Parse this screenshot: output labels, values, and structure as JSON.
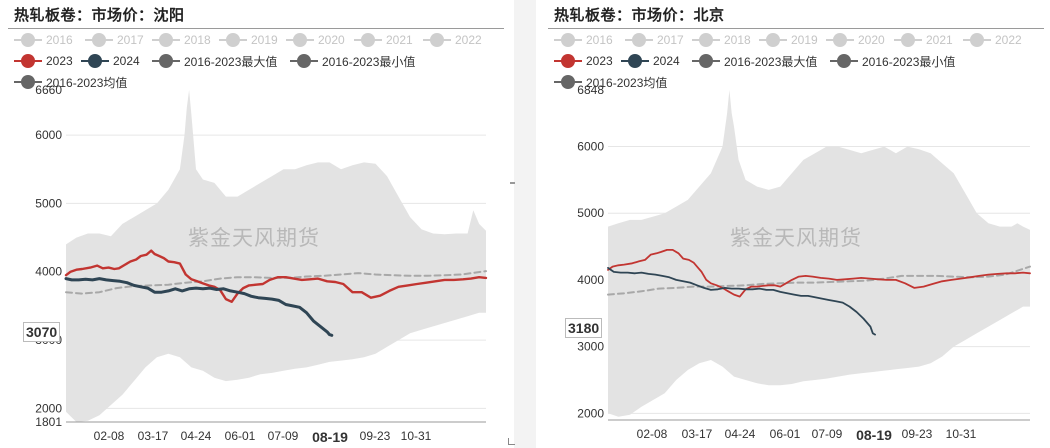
{
  "chart_data": [
    {
      "type": "line",
      "title": "热轧板卷：市场价：沈阳",
      "watermark": "紫金天风期货",
      "legend": [
        "2016",
        "2017",
        "2018",
        "2019",
        "2020",
        "2021",
        "2022",
        "2023",
        "2024",
        "2016-2023最大值",
        "2016-2023最小值",
        "2016-2023均值"
      ],
      "legend_hidden": [
        "2016",
        "2017",
        "2018",
        "2019",
        "2020",
        "2021",
        "2022"
      ],
      "ylim": [
        1801,
        6660
      ],
      "yticks": [
        2000,
        3000,
        4000,
        5000,
        6000
      ],
      "ylim_labels": [
        "1801",
        "6660"
      ],
      "xticks": [
        "02-08",
        "03-17",
        "04-24",
        "06-01",
        "07-09",
        "08-19",
        "09-23",
        "10-31"
      ],
      "highlight_tick": "08-19",
      "last_value": "3070",
      "series": [
        {
          "name": "2023",
          "color": "#c23531",
          "x": [
            1,
            5,
            10,
            15,
            22,
            28,
            33,
            38,
            43,
            47,
            52,
            57,
            62,
            66,
            71,
            75,
            78,
            82,
            86,
            90,
            95,
            100,
            105,
            110,
            115,
            120,
            125,
            130,
            135,
            140,
            145,
            150,
            155,
            160,
            166,
            172,
            178,
            185,
            192,
            199,
            206,
            213,
            220,
            228,
            235,
            242,
            250,
            258,
            266,
            274,
            282,
            290,
            298,
            306,
            314,
            322,
            330,
            338,
            346,
            353,
            360,
            366
          ],
          "y": [
            3950,
            4000,
            4030,
            4040,
            4060,
            4090,
            4050,
            4060,
            4040,
            4050,
            4100,
            4150,
            4180,
            4230,
            4250,
            4310,
            4260,
            4230,
            4200,
            4150,
            4140,
            4120,
            3960,
            3890,
            3860,
            3830,
            3800,
            3780,
            3730,
            3600,
            3560,
            3680,
            3760,
            3800,
            3810,
            3820,
            3880,
            3920,
            3920,
            3900,
            3880,
            3890,
            3900,
            3860,
            3850,
            3820,
            3700,
            3700,
            3620,
            3650,
            3720,
            3780,
            3800,
            3820,
            3840,
            3860,
            3880,
            3880,
            3890,
            3900,
            3920,
            3910
          ]
        },
        {
          "name": "2024",
          "color": "#2f4554",
          "x": [
            1,
            6,
            12,
            18,
            24,
            30,
            36,
            42,
            48,
            54,
            60,
            66,
            72,
            78,
            84,
            90,
            96,
            102,
            108,
            114,
            120,
            126,
            132,
            138,
            144,
            150,
            156,
            162,
            168,
            174,
            180,
            186,
            192,
            198,
            204,
            210,
            216,
            222,
            228,
            230,
            232
          ],
          "y": [
            3900,
            3880,
            3880,
            3890,
            3880,
            3900,
            3880,
            3870,
            3860,
            3840,
            3800,
            3780,
            3760,
            3700,
            3700,
            3720,
            3750,
            3720,
            3750,
            3760,
            3750,
            3760,
            3740,
            3750,
            3720,
            3700,
            3680,
            3640,
            3620,
            3610,
            3600,
            3580,
            3520,
            3500,
            3480,
            3400,
            3280,
            3200,
            3120,
            3080,
            3070
          ]
        },
        {
          "name": "2016-2023均值",
          "color": "#a8a8a8",
          "x": [
            1,
            15,
            30,
            45,
            60,
            75,
            90,
            105,
            120,
            135,
            150,
            165,
            180,
            195,
            210,
            225,
            240,
            255,
            270,
            285,
            300,
            315,
            330,
            345,
            366
          ],
          "y": [
            3700,
            3680,
            3700,
            3760,
            3790,
            3800,
            3810,
            3840,
            3860,
            3900,
            3920,
            3920,
            3910,
            3910,
            3930,
            3940,
            3960,
            3980,
            3960,
            3950,
            3940,
            3940,
            3950,
            3960,
            4010
          ]
        },
        {
          "name": "2016-2023最大值",
          "x": [
            1,
            10,
            20,
            30,
            40,
            50,
            60,
            70,
            80,
            90,
            100,
            104,
            106,
            108,
            110,
            114,
            120,
            130,
            140,
            150,
            160,
            170,
            180,
            190,
            200,
            210,
            220,
            230,
            240,
            250,
            260,
            270,
            280,
            290,
            300,
            310,
            320,
            330,
            340,
            350,
            355,
            360,
            366
          ],
          "y": [
            4400,
            4500,
            4560,
            4560,
            4520,
            4700,
            4800,
            4900,
            5000,
            5200,
            5500,
            6000,
            6400,
            6660,
            6300,
            5500,
            5350,
            5300,
            5100,
            5100,
            5200,
            5300,
            5400,
            5500,
            5500,
            5560,
            5600,
            5600,
            5500,
            5560,
            5600,
            5580,
            5400,
            5100,
            4800,
            4620,
            4560,
            4550,
            4560,
            4560,
            4900,
            4700,
            4600
          ]
        },
        {
          "name": "2016-2023最小值",
          "x": [
            1,
            10,
            20,
            30,
            40,
            50,
            60,
            70,
            80,
            90,
            100,
            110,
            120,
            130,
            140,
            150,
            160,
            170,
            180,
            190,
            200,
            210,
            220,
            230,
            240,
            250,
            260,
            270,
            280,
            290,
            300,
            310,
            320,
            330,
            340,
            350,
            360,
            366
          ],
          "y": [
            1950,
            1801,
            1820,
            1900,
            2050,
            2200,
            2400,
            2600,
            2750,
            2800,
            2750,
            2600,
            2550,
            2450,
            2400,
            2420,
            2450,
            2500,
            2520,
            2550,
            2580,
            2600,
            2640,
            2680,
            2700,
            2720,
            2750,
            2800,
            2900,
            3000,
            3100,
            3150,
            3200,
            3250,
            3300,
            3350,
            3400,
            3400
          ]
        }
      ]
    },
    {
      "type": "line",
      "title": "热轧板卷：市场价：北京",
      "watermark": "紫金天风期货",
      "legend": [
        "2016",
        "2017",
        "2018",
        "2019",
        "2020",
        "2021",
        "2022",
        "2023",
        "2024",
        "2016-2023最大值",
        "2016-2023最小值",
        "2016-2023均值"
      ],
      "legend_hidden": [
        "2016",
        "2017",
        "2018",
        "2019",
        "2020",
        "2021",
        "2022"
      ],
      "ylim": [
        1900,
        6848
      ],
      "yticks": [
        2000,
        3000,
        4000,
        5000,
        6000
      ],
      "ylim_labels": [
        "",
        "6848"
      ],
      "xticks": [
        "02-08",
        "03-17",
        "04-24",
        "06-01",
        "07-09",
        "08-19",
        "09-23",
        "10-31"
      ],
      "highlight_tick": "08-19",
      "last_value": "3180",
      "series": [
        {
          "name": "2023",
          "color": "#c23531",
          "x": [
            1,
            5,
            10,
            15,
            22,
            28,
            33,
            38,
            43,
            47,
            52,
            57,
            62,
            66,
            71,
            75,
            78,
            82,
            86,
            90,
            95,
            100,
            105,
            110,
            115,
            120,
            125,
            130,
            135,
            140,
            145,
            150,
            155,
            160,
            166,
            172,
            178,
            185,
            192,
            199,
            206,
            213,
            220,
            228,
            235,
            242,
            250,
            258,
            266,
            274,
            282,
            290,
            298,
            306,
            314,
            322,
            330,
            338,
            346,
            353,
            360,
            366
          ],
          "y": [
            4150,
            4200,
            4220,
            4230,
            4250,
            4280,
            4300,
            4380,
            4400,
            4420,
            4450,
            4450,
            4400,
            4320,
            4300,
            4260,
            4200,
            4120,
            4000,
            3950,
            3920,
            3880,
            3830,
            3780,
            3750,
            3860,
            3900,
            3900,
            3910,
            3920,
            3920,
            3900,
            3950,
            4000,
            4050,
            4060,
            4050,
            4030,
            4020,
            4000,
            4010,
            4020,
            4030,
            4020,
            4010,
            4000,
            4000,
            3950,
            3880,
            3900,
            3940,
            3980,
            4000,
            4020,
            4040,
            4060,
            4080,
            4090,
            4100,
            4100,
            4110,
            4100
          ]
        },
        {
          "name": "2024",
          "color": "#2f4554",
          "x": [
            1,
            6,
            12,
            18,
            24,
            30,
            36,
            42,
            48,
            54,
            60,
            66,
            72,
            78,
            84,
            90,
            96,
            102,
            108,
            114,
            120,
            126,
            132,
            138,
            144,
            150,
            156,
            162,
            168,
            174,
            180,
            186,
            192,
            198,
            204,
            210,
            216,
            222,
            228,
            230,
            232
          ],
          "y": [
            4180,
            4120,
            4110,
            4110,
            4100,
            4110,
            4090,
            4080,
            4060,
            4040,
            4000,
            3980,
            3960,
            3920,
            3880,
            3850,
            3860,
            3880,
            3870,
            3870,
            3860,
            3860,
            3870,
            3850,
            3850,
            3820,
            3800,
            3780,
            3760,
            3760,
            3740,
            3720,
            3700,
            3680,
            3660,
            3600,
            3520,
            3420,
            3300,
            3200,
            3180
          ]
        },
        {
          "name": "2016-2023均值",
          "color": "#a8a8a8",
          "x": [
            1,
            15,
            30,
            45,
            60,
            75,
            90,
            105,
            120,
            135,
            150,
            165,
            180,
            195,
            210,
            225,
            240,
            255,
            270,
            285,
            300,
            315,
            330,
            345,
            366
          ],
          "y": [
            3780,
            3800,
            3830,
            3870,
            3880,
            3900,
            3900,
            3910,
            3920,
            3940,
            3950,
            3960,
            3960,
            3970,
            3980,
            3990,
            4020,
            4060,
            4060,
            4060,
            4050,
            4040,
            4050,
            4080,
            4200
          ]
        },
        {
          "name": "2016-2023最大值",
          "x": [
            1,
            10,
            20,
            30,
            40,
            50,
            60,
            70,
            80,
            90,
            100,
            104,
            106,
            108,
            110,
            114,
            120,
            130,
            140,
            150,
            160,
            170,
            180,
            190,
            200,
            210,
            220,
            230,
            240,
            250,
            260,
            270,
            280,
            290,
            300,
            310,
            320,
            330,
            340,
            350,
            355,
            360,
            366
          ],
          "y": [
            4800,
            4850,
            4900,
            4900,
            4950,
            5000,
            5100,
            5200,
            5400,
            5600,
            6000,
            6500,
            6848,
            6500,
            6300,
            5800,
            5500,
            5400,
            5350,
            5400,
            5600,
            5800,
            5900,
            6000,
            6000,
            5950,
            5900,
            5950,
            6000,
            5900,
            6000,
            5960,
            5900,
            5750,
            5600,
            5300,
            5000,
            4850,
            4800,
            4800,
            4850,
            4800,
            4750
          ]
        },
        {
          "name": "2016-2023最小值",
          "x": [
            1,
            10,
            20,
            30,
            40,
            50,
            60,
            70,
            80,
            90,
            100,
            110,
            120,
            130,
            140,
            150,
            160,
            170,
            180,
            190,
            200,
            210,
            220,
            230,
            240,
            250,
            260,
            270,
            280,
            290,
            300,
            310,
            320,
            330,
            340,
            350,
            360,
            366
          ],
          "y": [
            2000,
            1950,
            1980,
            2100,
            2200,
            2300,
            2500,
            2650,
            2750,
            2800,
            2700,
            2550,
            2500,
            2450,
            2420,
            2420,
            2440,
            2480,
            2500,
            2520,
            2550,
            2580,
            2600,
            2620,
            2640,
            2660,
            2680,
            2700,
            2750,
            2850,
            3000,
            3100,
            3200,
            3300,
            3400,
            3500,
            3600,
            3600
          ]
        }
      ]
    }
  ]
}
